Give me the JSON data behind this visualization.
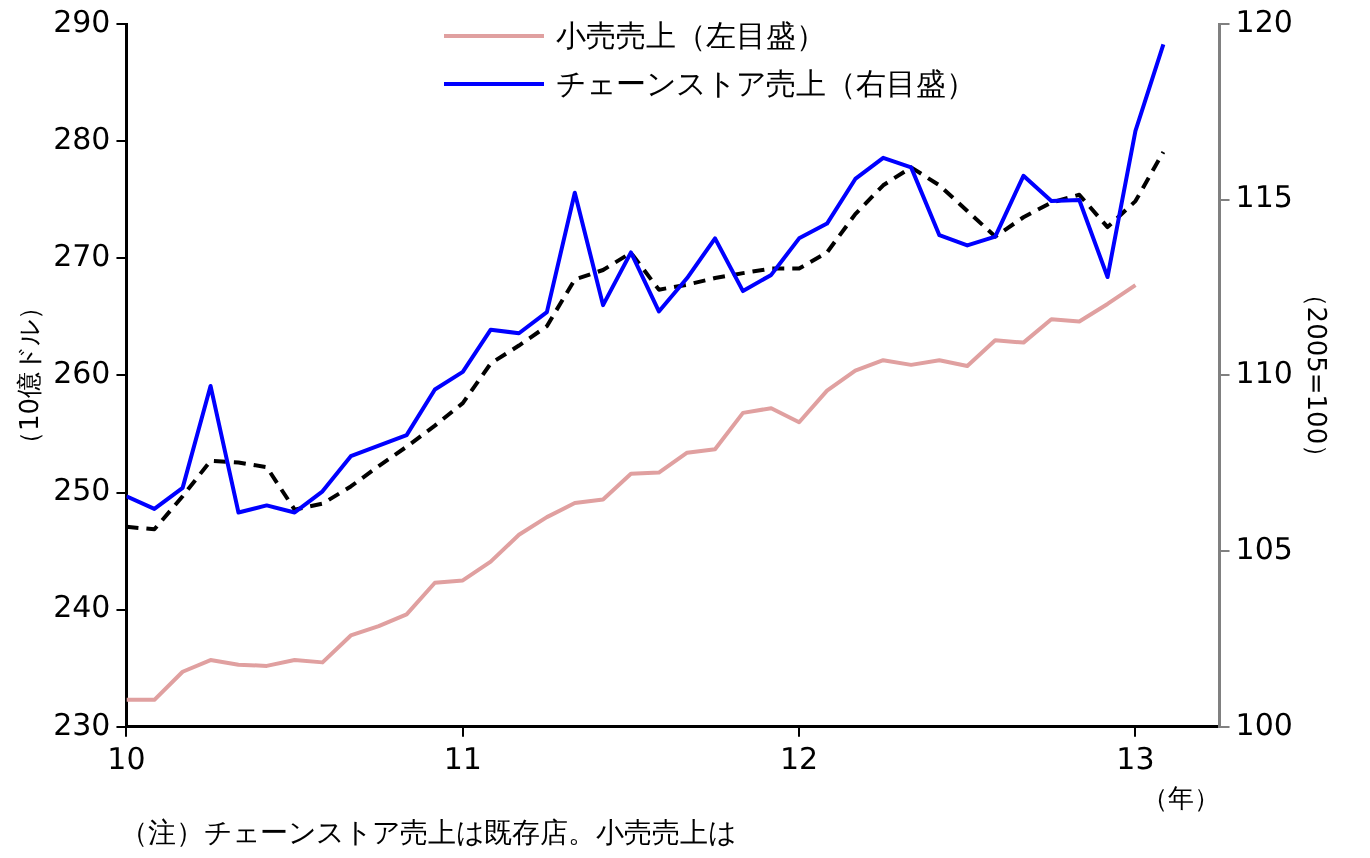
{
  "chart_data": {
    "type": "line",
    "x": [
      10,
      10.083,
      10.167,
      10.25,
      10.333,
      10.417,
      10.5,
      10.583,
      10.667,
      10.75,
      10.833,
      10.917,
      11,
      11.083,
      11.167,
      11.25,
      11.333,
      11.417,
      11.5,
      11.583,
      11.667,
      11.75,
      11.833,
      11.917,
      12,
      12.083,
      12.167,
      12.25,
      12.333,
      12.417,
      12.5,
      12.583,
      12.667,
      12.75,
      12.833,
      12.917,
      13,
      13.083
    ],
    "series": [
      {
        "name": "小売売上（左目盛）",
        "color": "#e0a0a0",
        "axis": "y",
        "line_style": "solid",
        "values": [
          232.3,
          232.3,
          234.7,
          235.7,
          235.3,
          235.2,
          235.7,
          235.5,
          237.8,
          238.6,
          239.6,
          242.3,
          242.5,
          244.1,
          246.4,
          247.9,
          249.1,
          249.4,
          251.6,
          251.7,
          253.4,
          253.7,
          256.8,
          257.2,
          256.0,
          258.7,
          260.4,
          261.3,
          260.9,
          261.3,
          260.8,
          263.0,
          262.8,
          264.8,
          264.6,
          266.1,
          267.7,
          null
        ]
      },
      {
        "name": "チェーンストア売上（右目盛）",
        "color": "#0000ff",
        "axis": "y2",
        "line_style": "solid",
        "values": [
          106.56,
          106.2,
          106.8,
          109.7,
          106.1,
          106.3,
          106.1,
          106.7,
          107.7,
          108.0,
          108.3,
          109.6,
          110.1,
          111.3,
          111.2,
          111.8,
          115.2,
          112.0,
          113.5,
          111.82,
          112.77,
          113.9,
          112.4,
          112.86,
          113.9,
          114.32,
          115.59,
          116.19,
          115.92,
          113.99,
          113.7,
          113.95,
          115.68,
          114.96,
          114.99,
          112.8,
          116.96,
          119.42
        ]
      },
      {
        "color": "#000000",
        "axis": "y2",
        "line_style": "dashed",
        "values": [
          105.69,
          105.62,
          106.56,
          107.57,
          107.52,
          107.39,
          106.18,
          106.35,
          106.84,
          107.42,
          107.97,
          108.57,
          109.21,
          110.34,
          110.85,
          111.4,
          112.73,
          113.0,
          113.49,
          112.44,
          112.58,
          112.77,
          112.91,
          113.04,
          113.04,
          113.5,
          114.59,
          115.41,
          115.92,
          115.41,
          114.68,
          113.95,
          114.5,
          114.92,
          115.14,
          114.22,
          114.96,
          116.36
        ]
      }
    ],
    "xlim": [
      10,
      13.25
    ],
    "xticks": [
      10,
      11,
      12,
      13
    ],
    "ylim": [
      230,
      290
    ],
    "yticks": [
      230,
      240,
      250,
      260,
      270,
      280,
      290
    ],
    "y2lim": [
      100,
      120
    ],
    "y2ticks": [
      100,
      105,
      110,
      115,
      120
    ],
    "ylabel": "（10億ドル）",
    "y2label": "（2005=100）",
    "xlabel": "（年）",
    "legend": "top",
    "grid": false,
    "marker": "none",
    "annotations": [
      "（注）チェーンストア売上は既存店。小売売上は"
    ]
  }
}
